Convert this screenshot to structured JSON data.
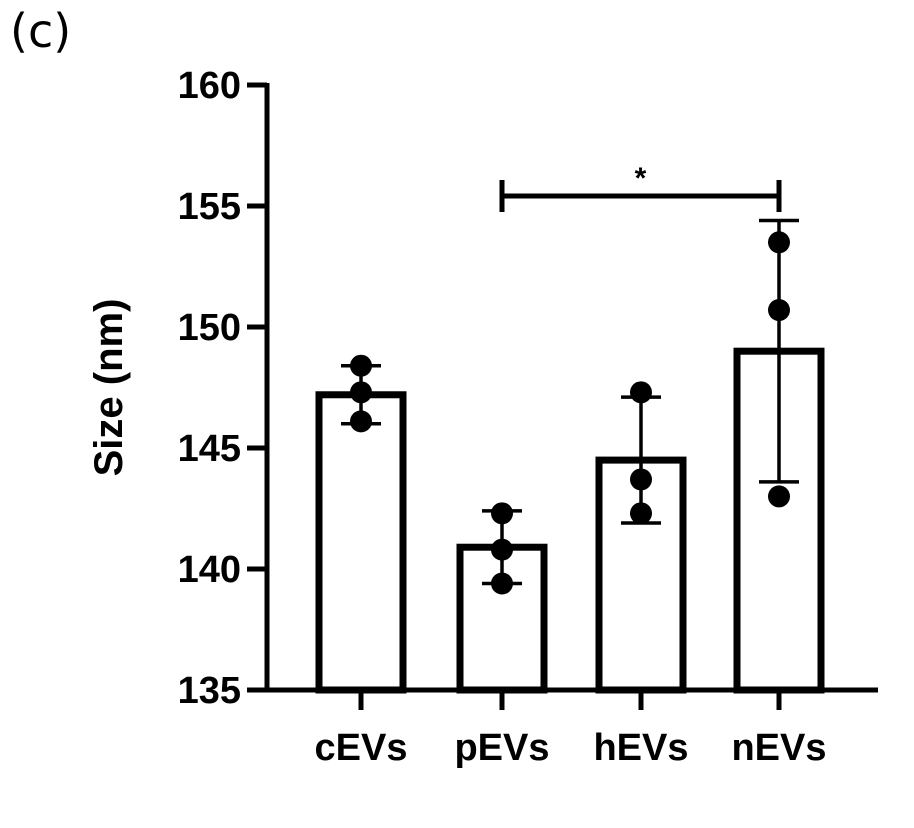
{
  "panel_label": "(c)",
  "chart_data": {
    "type": "bar",
    "title": "",
    "xlabel": "",
    "ylabel": "Size (nm)",
    "ylim": [
      135,
      160
    ],
    "yticks": [
      135,
      140,
      145,
      150,
      155,
      160
    ],
    "grid": false,
    "categories": [
      "cEVs",
      "pEVs",
      "hEVs",
      "nEVs"
    ],
    "values": [
      147.2,
      140.9,
      144.5,
      149.0
    ],
    "error": [
      1.2,
      1.5,
      2.6,
      5.4
    ],
    "points": [
      [
        148.4,
        147.3,
        146.1
      ],
      [
        142.3,
        140.8,
        139.4
      ],
      [
        147.3,
        143.7,
        142.3
      ],
      [
        153.5,
        150.7,
        143.0
      ]
    ],
    "significance": [
      {
        "from": "pEVs",
        "to": "nEVs",
        "label": "*"
      }
    ],
    "colors": {
      "bar_fill": "#ffffff",
      "stroke": "#000000",
      "point": "#000000"
    }
  }
}
